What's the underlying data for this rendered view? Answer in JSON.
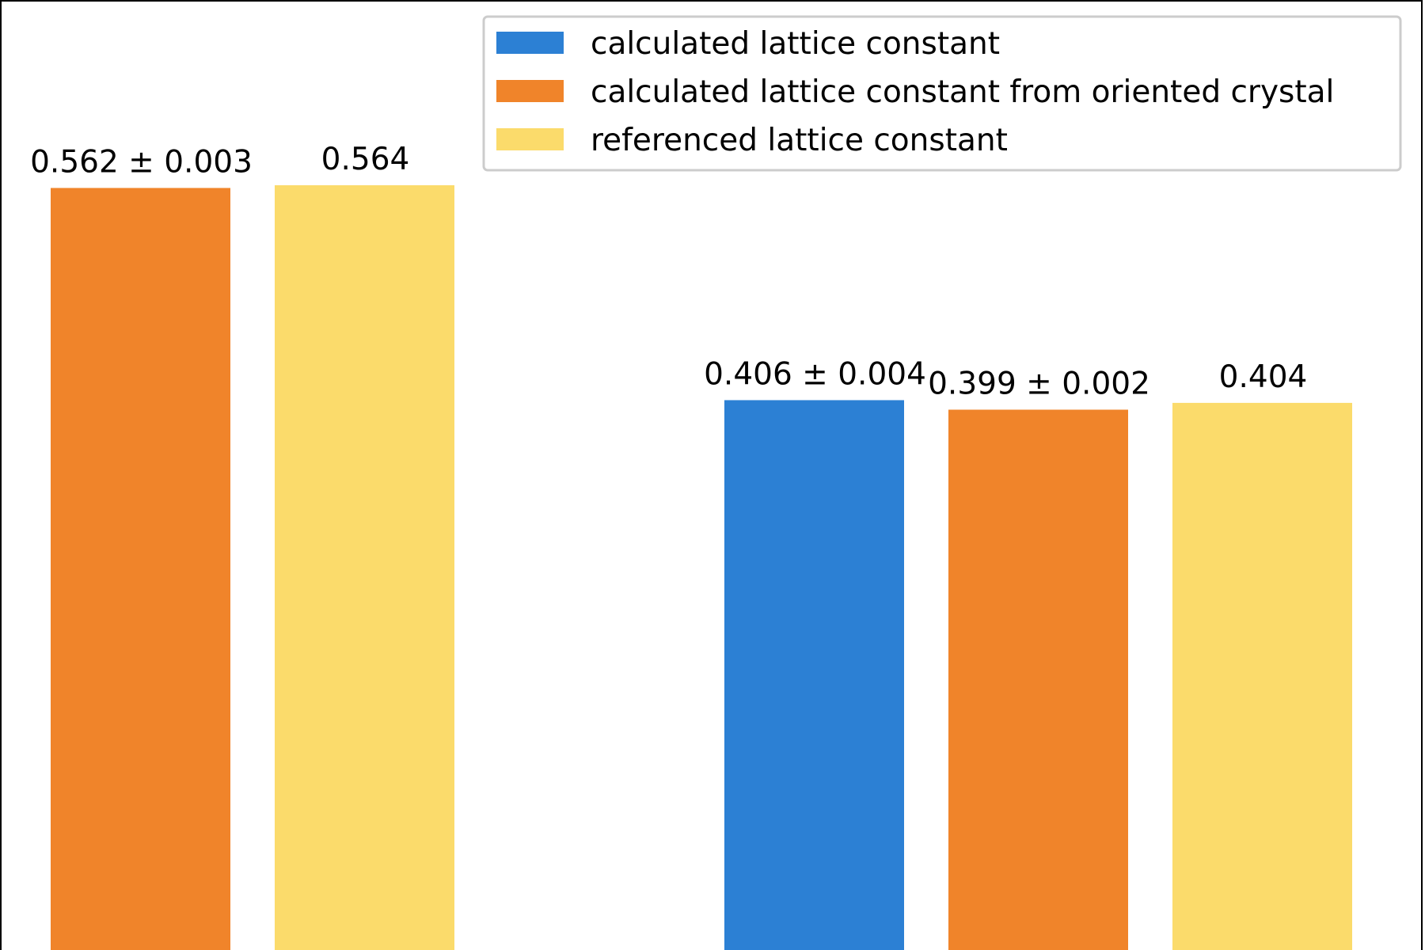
{
  "chart_data": {
    "type": "bar",
    "title": "",
    "xlabel": "",
    "ylabel": "",
    "ylim": [
      0,
      0.564
    ],
    "grid": false,
    "legend_position": "top-right",
    "groups": [
      {
        "bars": [
          {
            "series": "calculated lattice constant from oriented crystal",
            "value": 0.562,
            "error": 0.003,
            "label": "0.562 ± 0.003"
          },
          {
            "series": "referenced lattice constant",
            "value": 0.564,
            "label": "0.564"
          }
        ]
      },
      {
        "bars": [
          {
            "series": "calculated lattice constant",
            "value": 0.406,
            "error": 0.004,
            "label": "0.406 ± 0.004"
          },
          {
            "series": "calculated lattice constant from oriented crystal",
            "value": 0.399,
            "error": 0.002,
            "label": "0.399 ± 0.002"
          },
          {
            "series": "referenced lattice constant",
            "value": 0.404,
            "label": "0.404"
          }
        ]
      }
    ],
    "series": [
      {
        "name": "calculated lattice constant",
        "color": "#2c80d4"
      },
      {
        "name": "calculated lattice constant from oriented crystal",
        "color": "#f0842a"
      },
      {
        "name": "referenced lattice constant",
        "color": "#fbdb6b"
      }
    ]
  }
}
